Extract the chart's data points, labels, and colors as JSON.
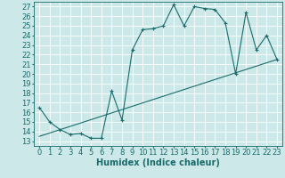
{
  "title": "",
  "xlabel": "Humidex (Indice chaleur)",
  "background_color": "#cce8e8",
  "line_color": "#1a6b6b",
  "grid_color": "#ffffff",
  "xlim": [
    -0.5,
    23.5
  ],
  "ylim": [
    12.5,
    27.5
  ],
  "xticks": [
    0,
    1,
    2,
    3,
    4,
    5,
    6,
    7,
    8,
    9,
    10,
    11,
    12,
    13,
    14,
    15,
    16,
    17,
    18,
    19,
    20,
    21,
    22,
    23
  ],
  "yticks": [
    13,
    14,
    15,
    16,
    17,
    18,
    19,
    20,
    21,
    22,
    23,
    24,
    25,
    26,
    27
  ],
  "line1_x": [
    0,
    1,
    2,
    3,
    4,
    5,
    6,
    7,
    8,
    9,
    10,
    11,
    12,
    13,
    14,
    15,
    16,
    17,
    18,
    19,
    20,
    21,
    22,
    23
  ],
  "line1_y": [
    16.5,
    15.0,
    14.2,
    13.7,
    13.8,
    13.3,
    13.3,
    18.2,
    15.2,
    22.5,
    24.6,
    24.7,
    25.0,
    27.2,
    25.0,
    27.0,
    26.8,
    26.7,
    25.3,
    20.0,
    26.4,
    22.5,
    24.0,
    21.5
  ],
  "line2_x": [
    0,
    23
  ],
  "line2_y": [
    13.5,
    21.5
  ],
  "fontsize_label": 7,
  "fontsize_tick": 6
}
